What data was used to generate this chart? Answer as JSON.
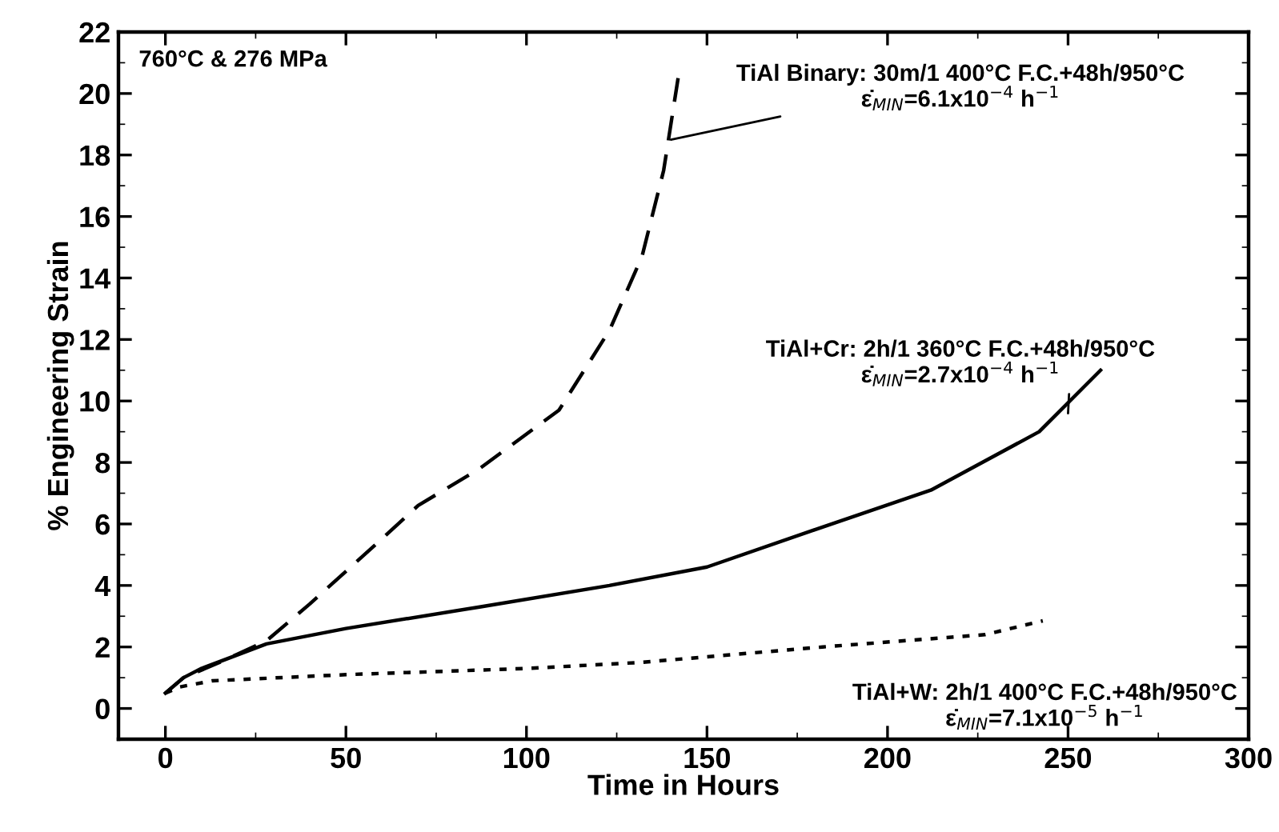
{
  "chart_data": {
    "type": "line",
    "xlabel": "Time in Hours",
    "ylabel": "% Engineering Strain",
    "xlim": [
      -13,
      300
    ],
    "xticks": [
      0,
      50,
      100,
      150,
      200,
      250,
      300
    ],
    "ylim": [
      -1,
      22
    ],
    "yticks": [
      0,
      2,
      4,
      6,
      8,
      10,
      12,
      14,
      16,
      18,
      20,
      22
    ],
    "grid": false,
    "legend": false,
    "marker": "none",
    "series": [
      {
        "color": "#000000",
        "line_style": "dashed",
        "x": [
          0,
          5,
          15,
          28,
          40,
          57,
          70,
          87,
          109,
          123,
          132,
          138,
          142
        ],
        "values": [
          0.5,
          1.0,
          1.5,
          2.2,
          3.4,
          5.2,
          6.6,
          7.8,
          9.7,
          12.3,
          14.7,
          17.5,
          20.5
        ]
      },
      {
        "color": "#000000",
        "line_style": "solid",
        "x": [
          0,
          5,
          10,
          28,
          50,
          87,
          123,
          150,
          182,
          212,
          242,
          259
        ],
        "values": [
          0.5,
          1.0,
          1.3,
          2.1,
          2.6,
          3.3,
          4.0,
          4.6,
          5.9,
          7.1,
          9.0,
          11.0
        ]
      },
      {
        "color": "#000000",
        "line_style": "dotted",
        "x": [
          0,
          4,
          13,
          50,
          100,
          132,
          182,
          227,
          243
        ],
        "values": [
          0.5,
          0.7,
          0.9,
          1.1,
          1.3,
          1.5,
          2.0,
          2.4,
          2.85
        ]
      }
    ],
    "annotations": [
      "760°C & 276 MPa",
      {
        "text": "TiAl Binary: 30m/1 400°C F.C.+48h/950°C\nε̇$_{MIN}$=6.1x10$^{−4}$ h$^{−1}$",
        "x": 140,
        "y": 18.5
      },
      {
        "text": "TiAl+Cr: 2h/1 360°C F.C.+48h/950°C\nε̇$_{MIN}$=2.7x10$^{−4}$ h$^{−1}$",
        "x": 250,
        "y": 9.6
      },
      "TiAl+W: 2h/1 400°C F.C.+48h/950°C\nε̇$_{MIN}$=7.1x10$^{−5}$ h$^{−1}$"
    ]
  }
}
